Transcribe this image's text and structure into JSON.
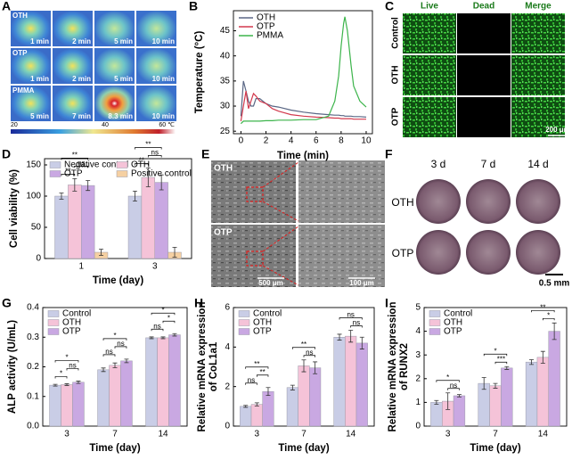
{
  "panels": {
    "A": {
      "label": "A",
      "row_labels": [
        "OTH",
        "OTP",
        "PMMA"
      ],
      "times": [
        [
          "1 min",
          "2 min",
          "5 min",
          "10 min"
        ],
        [
          "1 min",
          "2 min",
          "5 min",
          "10 min"
        ],
        [
          "5 min",
          "7 min",
          "8.3 min",
          "10 min"
        ]
      ],
      "colorbar_labels": [
        "20",
        "40",
        "60 ℃"
      ]
    },
    "C": {
      "label": "C",
      "columns": [
        "Live",
        "Dead",
        "Merge"
      ],
      "rows": [
        "Control",
        "OTH",
        "OTP"
      ],
      "scale": "200 μm"
    },
    "E": {
      "label": "E",
      "rows": [
        "OTH",
        "OTP"
      ],
      "scales": [
        "500 μm",
        "100 μm"
      ]
    },
    "F": {
      "label": "F",
      "columns": [
        "3 d",
        "7 d",
        "14 d"
      ],
      "rows": [
        "OTH",
        "OTP"
      ],
      "scale": "0.5 mm"
    }
  },
  "chart_data": [
    {
      "panel": "B",
      "type": "line",
      "xlabel": "Time (min)",
      "ylabel": [
        "Temperature (°C)"
      ],
      "x": [
        0,
        0.2,
        0.4,
        0.6,
        0.8,
        1,
        1.2,
        1.5,
        2,
        2.5,
        3,
        4,
        5,
        6,
        7,
        7.5,
        7.8,
        8,
        8.2,
        8.3,
        8.5,
        8.8,
        9,
        9.5,
        10
      ],
      "series": [
        {
          "name": "OTH",
          "color": "#5a6785",
          "values": [
            28,
            35,
            33,
            31,
            30,
            30,
            31.5,
            31.5,
            30.5,
            30,
            29.8,
            29.2,
            28.8,
            28.5,
            28.3,
            28.2,
            28.2,
            28.1,
            28.1,
            28,
            28,
            28,
            27.9,
            27.9,
            27.8
          ]
        },
        {
          "name": "OTP",
          "color": "#d2394d",
          "values": [
            27,
            30,
            33,
            29.5,
            31,
            32.5,
            32,
            31,
            30.5,
            29.5,
            29,
            28.3,
            28,
            27.8,
            27.7,
            27.6,
            27.6,
            27.5,
            27.5,
            27.5,
            27.5,
            27.5,
            27.4,
            27.4,
            27.4
          ]
        },
        {
          "name": "PMMA",
          "color": "#3cb44b",
          "values": [
            26.5,
            27,
            27,
            27,
            27,
            27,
            27,
            27,
            27.1,
            27.1,
            27.2,
            27.2,
            27.3,
            27.3,
            28,
            31,
            36,
            42,
            46.5,
            47.8,
            45,
            38,
            34,
            31,
            29.8
          ]
        }
      ],
      "xlim": [
        -0.6,
        10.5
      ],
      "xticks": [
        0,
        2,
        4,
        6,
        8,
        10
      ],
      "ylim": [
        24.5,
        49
      ],
      "yticks": [
        25,
        30,
        35,
        40,
        45
      ]
    },
    {
      "panel": "D",
      "type": "bar",
      "xlabel": "Time (day)",
      "ylabel": [
        "Cell viability (%)"
      ],
      "categories": [
        "1",
        "3"
      ],
      "series": [
        {
          "name": "Negative control",
          "color": "#c9cde6",
          "values": [
            100,
            100
          ],
          "errors": [
            5,
            8
          ]
        },
        {
          "name": "OTH",
          "color": "#f5c3d8",
          "values": [
            118,
            130
          ],
          "errors": [
            10,
            15
          ]
        },
        {
          "name": "OTP",
          "color": "#c9a8e2",
          "values": [
            117,
            122
          ],
          "errors": [
            8,
            12
          ]
        },
        {
          "name": "Positive control",
          "color": "#f5d0a2",
          "values": [
            10,
            10
          ],
          "errors": [
            5,
            8
          ]
        }
      ],
      "annotations": [
        [
          "**",
          "**",
          "ns"
        ],
        [
          "**",
          "**",
          "ns"
        ]
      ],
      "ylim": [
        0,
        160
      ],
      "yticks": [
        0,
        50,
        100,
        150
      ]
    },
    {
      "panel": "G",
      "type": "bar",
      "xlabel": "Time (day)",
      "ylabel": [
        "ALP activity (U/mL)"
      ],
      "categories": [
        "3",
        "7",
        "14"
      ],
      "series": [
        {
          "name": "Control",
          "color": "#c9cde6",
          "values": [
            0.138,
            0.19,
            0.298
          ],
          "errors": [
            0.003,
            0.006,
            0.003
          ]
        },
        {
          "name": "OTH",
          "color": "#f5c3d8",
          "values": [
            0.14,
            0.205,
            0.298
          ],
          "errors": [
            0.003,
            0.008,
            0.003
          ]
        },
        {
          "name": "OTP",
          "color": "#c9a8e2",
          "values": [
            0.148,
            0.22,
            0.308
          ],
          "errors": [
            0.004,
            0.006,
            0.004
          ]
        }
      ],
      "annotations": [
        [
          "*",
          "*",
          "ns"
        ],
        [
          "*",
          "ns",
          "ns"
        ],
        [
          "*",
          "ns",
          "*"
        ]
      ],
      "ylim": [
        0,
        0.4
      ],
      "yticks": [
        {
          "value": 0,
          "label": "0.0"
        },
        0.1,
        0.2,
        0.3,
        0.4
      ]
    },
    {
      "panel": "H",
      "type": "bar",
      "xlabel": "Time (day)",
      "ylabel": [
        "Relative mRNA expression",
        "of CoL1a1"
      ],
      "categories": [
        "3",
        "7",
        "14"
      ],
      "series": [
        {
          "name": "Control",
          "color": "#c9cde6",
          "values": [
            1.0,
            1.95,
            4.5
          ],
          "errors": [
            0.05,
            0.12,
            0.15
          ]
        },
        {
          "name": "OTH",
          "color": "#f5c3d8",
          "values": [
            1.1,
            3.05,
            4.55
          ],
          "errors": [
            0.08,
            0.3,
            0.3
          ]
        },
        {
          "name": "OTP",
          "color": "#c9a8e2",
          "values": [
            1.75,
            2.95,
            4.2
          ],
          "errors": [
            0.2,
            0.3,
            0.3
          ]
        }
      ],
      "annotations": [
        [
          "**",
          "ns",
          "**"
        ],
        [
          "**",
          "ns"
        ],
        [
          "ns",
          "ns"
        ]
      ],
      "ylim": [
        0,
        6
      ],
      "yticks": [
        0,
        2,
        4,
        6
      ]
    },
    {
      "panel": "I",
      "type": "bar",
      "xlabel": "Time (day)",
      "ylabel": [
        "Relative mRNA expression",
        "of RUNX2"
      ],
      "categories": [
        "3",
        "7",
        "14"
      ],
      "series": [
        {
          "name": "Control",
          "color": "#c9cde6",
          "values": [
            1.0,
            1.8,
            2.7
          ],
          "errors": [
            0.08,
            0.25,
            0.1
          ]
        },
        {
          "name": "OTH",
          "color": "#f5c3d8",
          "values": [
            1.05,
            1.7,
            2.9
          ],
          "errors": [
            0.35,
            0.1,
            0.25
          ]
        },
        {
          "name": "OTP",
          "color": "#c9a8e2",
          "values": [
            1.28,
            2.45,
            4.0
          ],
          "errors": [
            0.05,
            0.06,
            0.35
          ]
        }
      ],
      "annotations": [
        [
          "*",
          "ns"
        ],
        [
          "*",
          "***"
        ],
        [
          "**",
          "*"
        ]
      ],
      "ylim": [
        0,
        5
      ],
      "yticks": [
        0,
        1,
        2,
        3,
        4,
        5
      ]
    }
  ]
}
